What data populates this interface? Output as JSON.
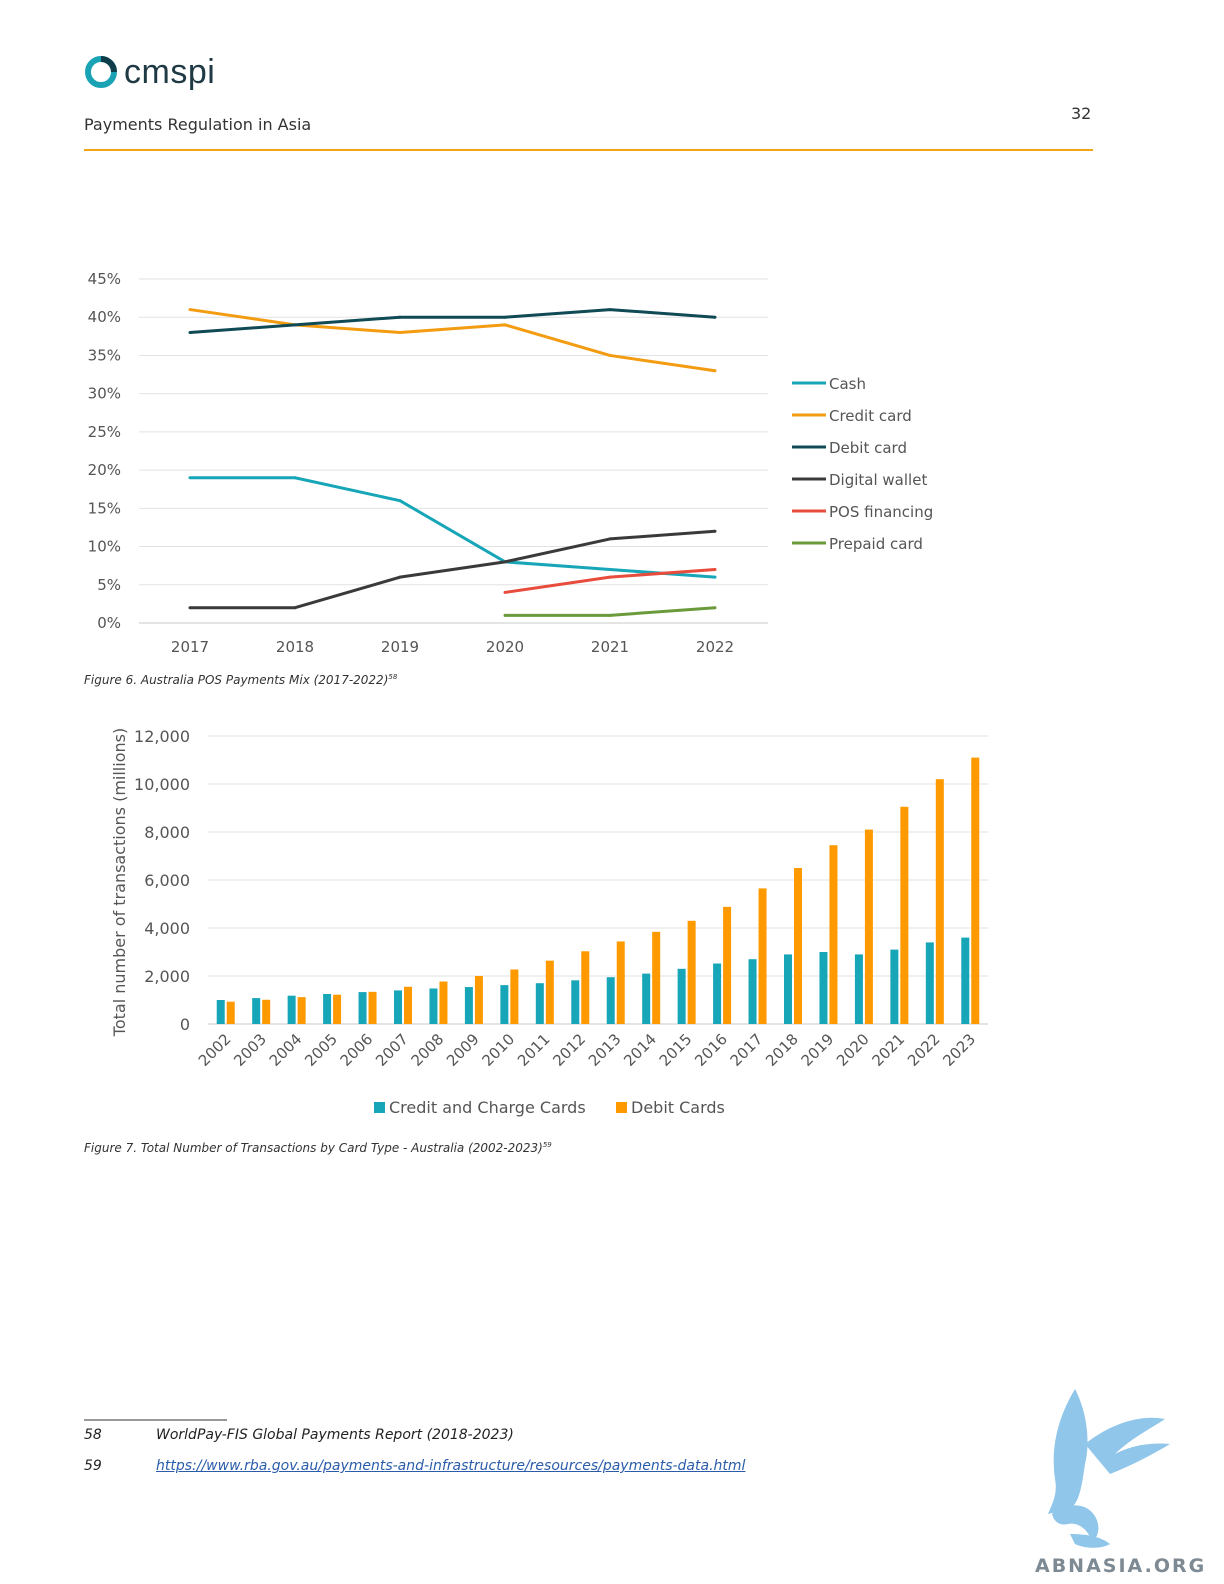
{
  "header": {
    "logo_text": "cmspi",
    "doc_title": "Payments Regulation in Asia",
    "page_number": "32"
  },
  "figure6": {
    "caption": "Figure 6. Australia POS Payments Mix (2017-2022)",
    "footnote_ref": "58"
  },
  "figure7": {
    "caption": "Figure 7. Total Number of Transactions by Card Type - Australia (2002-2023)",
    "footnote_ref": "59"
  },
  "chart_data": [
    {
      "type": "line",
      "title": "",
      "xlabel": "",
      "ylabel": "",
      "x": [
        "2017",
        "2018",
        "2019",
        "2020",
        "2021",
        "2022"
      ],
      "yticks": [
        "0%",
        "5%",
        "10%",
        "15%",
        "20%",
        "25%",
        "30%",
        "35%",
        "40%",
        "45%"
      ],
      "ylim": [
        0,
        45
      ],
      "grid": true,
      "legend_position": "right",
      "series": [
        {
          "name": "Cash",
          "color": "#17a6b8",
          "values": [
            19,
            19,
            16,
            8,
            7,
            6
          ]
        },
        {
          "name": "Credit card",
          "color": "#f39c12",
          "values": [
            41,
            39,
            38,
            39,
            35,
            33
          ]
        },
        {
          "name": "Debit card",
          "color": "#0f4a55",
          "values": [
            38,
            39,
            40,
            40,
            41,
            40
          ]
        },
        {
          "name": "Digital wallet",
          "color": "#3a3a3a",
          "values": [
            2,
            2,
            6,
            8,
            11,
            12
          ]
        },
        {
          "name": "POS financing",
          "color": "#e74c3c",
          "values": [
            null,
            null,
            null,
            4,
            6,
            7
          ]
        },
        {
          "name": "Prepaid card",
          "color": "#6b9a3a",
          "values": [
            null,
            null,
            null,
            1,
            1,
            2
          ]
        }
      ]
    },
    {
      "type": "bar",
      "title": "",
      "xlabel": "",
      "ylabel": "Total number of transactions (millions)",
      "categories": [
        "2002",
        "2003",
        "2004",
        "2005",
        "2006",
        "2007",
        "2008",
        "2009",
        "2010",
        "2011",
        "2012",
        "2013",
        "2014",
        "2015",
        "2016",
        "2017",
        "2018",
        "2019",
        "2020",
        "2021",
        "2022",
        "2023"
      ],
      "yticks": [
        "0",
        "2,000",
        "4,000",
        "6,000",
        "8,000",
        "10,000",
        "12,000"
      ],
      "ylim": [
        0,
        12000
      ],
      "grid": true,
      "legend_position": "bottom",
      "series": [
        {
          "name": "Credit and Charge Cards",
          "color": "#17a6b8",
          "values": [
            1000,
            1080,
            1180,
            1250,
            1330,
            1400,
            1480,
            1540,
            1620,
            1700,
            1820,
            1950,
            2100,
            2300,
            2520,
            2700,
            2900,
            3000,
            2900,
            3100,
            3400,
            3600
          ]
        },
        {
          "name": "Debit Cards",
          "color": "#ff9900",
          "values": [
            930,
            1010,
            1120,
            1220,
            1340,
            1550,
            1770,
            2000,
            2270,
            2640,
            3030,
            3440,
            3840,
            4300,
            4880,
            5650,
            6500,
            7450,
            8100,
            9050,
            10200,
            11100
          ]
        }
      ]
    }
  ],
  "footnotes": [
    {
      "number": "58",
      "text": "WorldPay-FIS Global Payments Report (2018-2023)",
      "is_link": false
    },
    {
      "number": "59",
      "text": "https://www.rba.gov.au/payments-and-infrastructure/resources/payments-data.html",
      "is_link": true
    }
  ],
  "watermark": {
    "text": "ABNASIA.ORG"
  }
}
